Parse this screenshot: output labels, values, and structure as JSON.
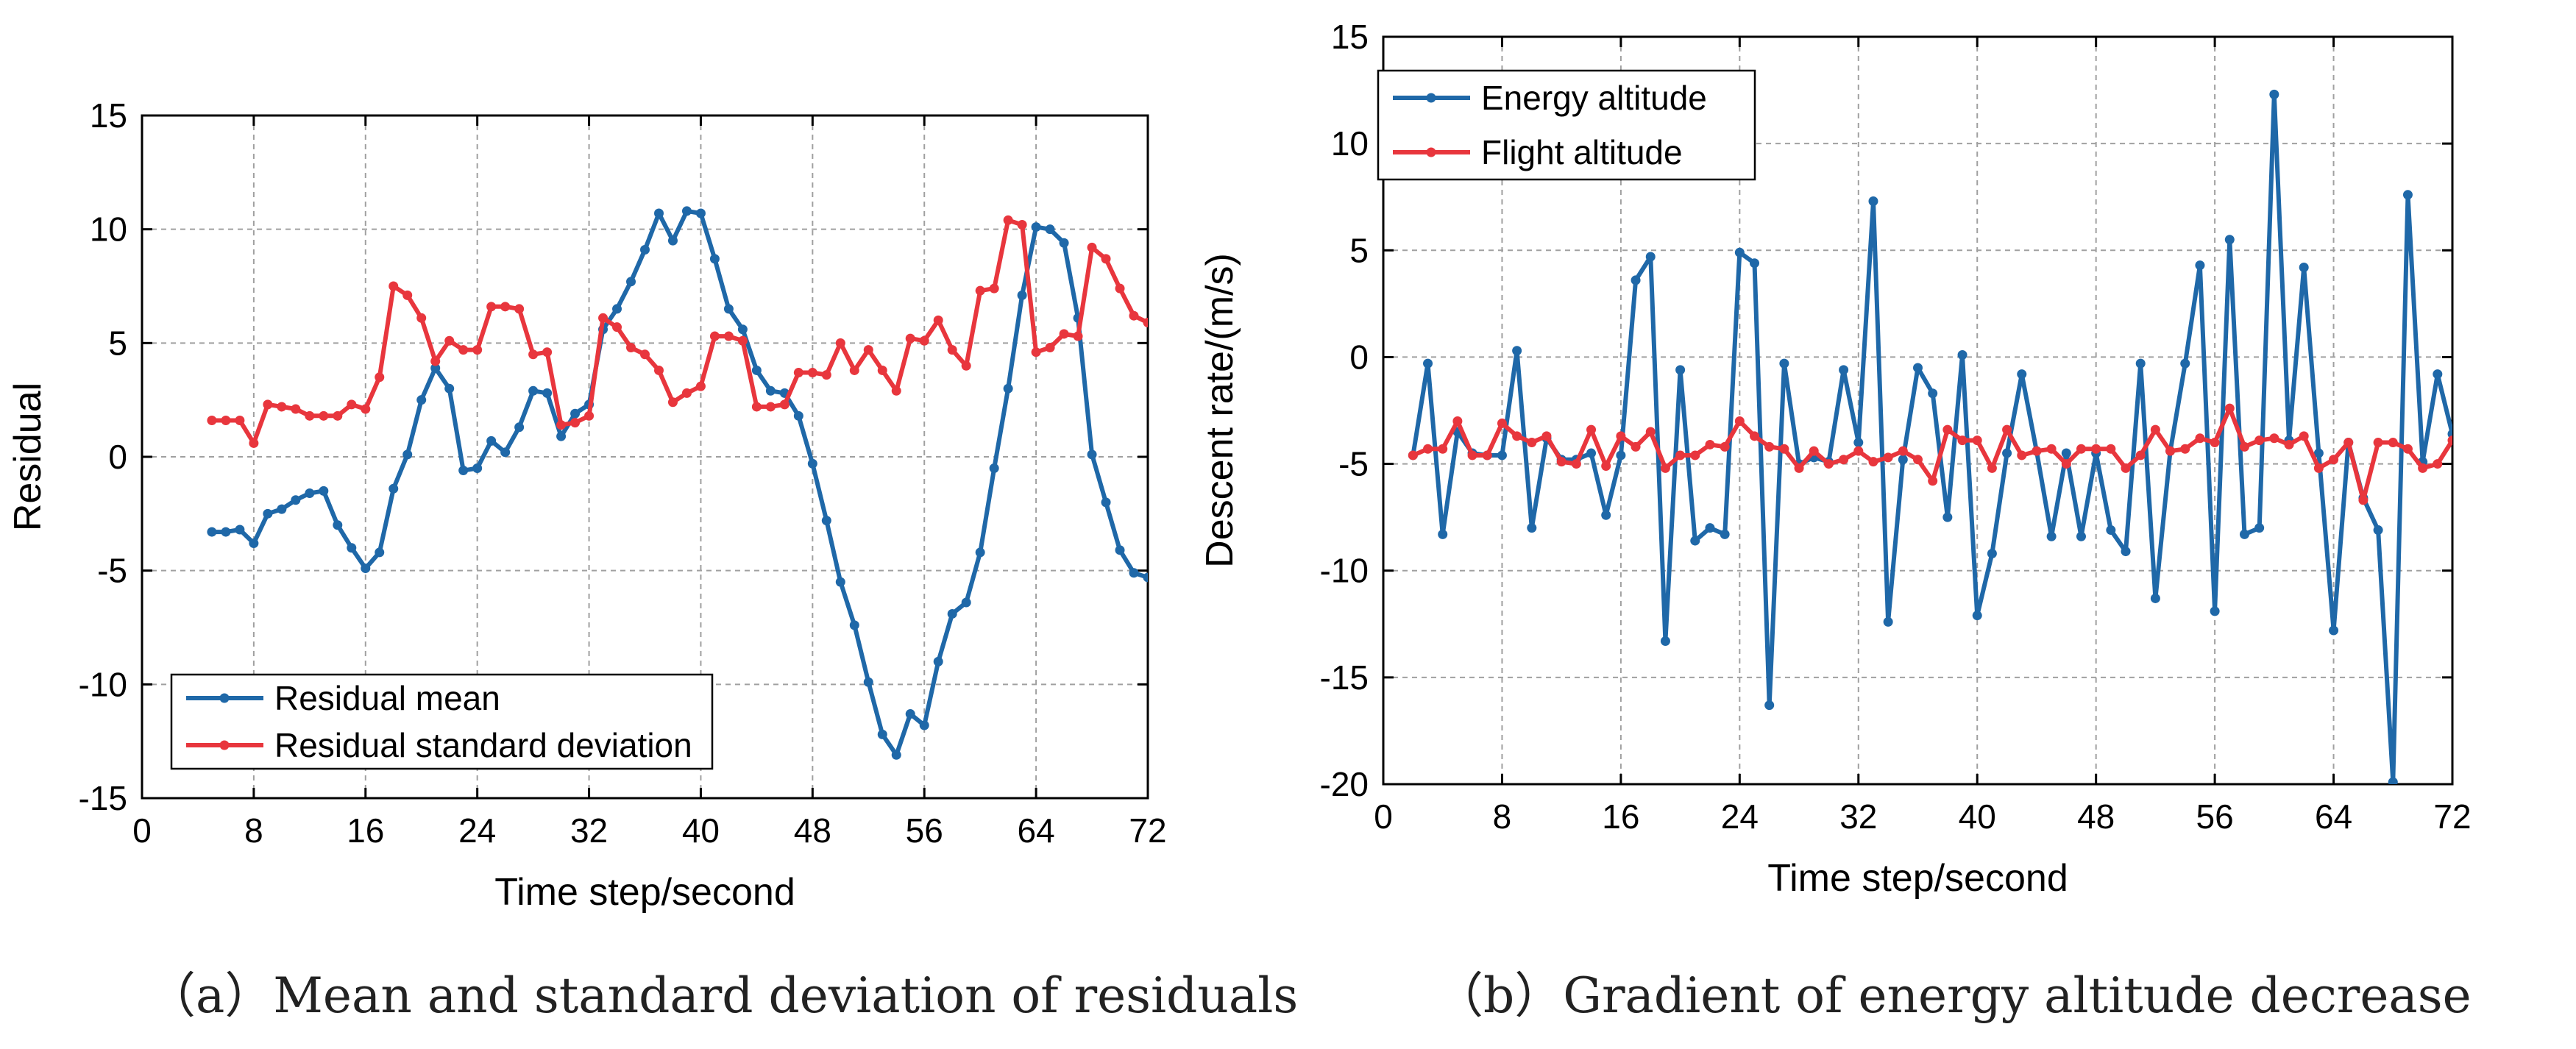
{
  "captions": {
    "a": "（a）Mean and standard deviation of residuals",
    "b": "（b）Gradient of energy altitude decrease"
  },
  "colors": {
    "blue": "#1f68a8",
    "red": "#e8363d",
    "grid": "#a0a0a0"
  },
  "chart_data": [
    {
      "type": "line",
      "xlabel": "Time step/second",
      "ylabel": "Residual",
      "xlim": [
        0,
        72
      ],
      "ylim": [
        -15,
        15
      ],
      "xticks": [
        0,
        8,
        16,
        24,
        32,
        40,
        48,
        56,
        64,
        72
      ],
      "yticks": [
        -15,
        -10,
        -5,
        0,
        5,
        10,
        15
      ],
      "grid": true,
      "legend_position": "bottom-left",
      "series": [
        {
          "name": "Residual mean",
          "color": "#1f68a8",
          "x": [
            5,
            6,
            7,
            8,
            9,
            10,
            11,
            12,
            13,
            14,
            15,
            16,
            17,
            18,
            19,
            20,
            21,
            22,
            23,
            24,
            25,
            26,
            27,
            28,
            29,
            30,
            31,
            32,
            33,
            34,
            35,
            36,
            37,
            38,
            39,
            40,
            41,
            42,
            43,
            44,
            45,
            46,
            47,
            48,
            49,
            50,
            51,
            52,
            53,
            54,
            55,
            56,
            57,
            58,
            59,
            60,
            61,
            62,
            63,
            64,
            65,
            66,
            67,
            68,
            69,
            70,
            71,
            72
          ],
          "y": [
            -3.3,
            -3.3,
            -3.2,
            -3.8,
            -2.5,
            -2.3,
            -1.9,
            -1.6,
            -1.5,
            -3.0,
            -4.0,
            -4.9,
            -4.2,
            -1.4,
            0.1,
            2.5,
            3.9,
            3.0,
            -0.6,
            -0.5,
            0.7,
            0.2,
            1.3,
            2.9,
            2.8,
            0.9,
            1.9,
            2.3,
            5.6,
            6.5,
            7.7,
            9.1,
            10.7,
            9.5,
            10.8,
            10.7,
            8.7,
            6.5,
            5.6,
            3.8,
            2.9,
            2.8,
            1.8,
            -0.3,
            -2.8,
            -5.5,
            -7.4,
            -9.9,
            -12.2,
            -13.1,
            -11.3,
            -11.8,
            -9.0,
            -6.9,
            -6.4,
            -4.2,
            -0.5,
            3.0,
            7.1,
            10.1,
            10.0,
            9.4,
            6.1,
            0.1,
            -2.0,
            -4.1,
            -5.1,
            -5.3
          ]
        },
        {
          "name": "Residual standard deviation",
          "color": "#e8363d",
          "x": [
            5,
            6,
            7,
            8,
            9,
            10,
            11,
            12,
            13,
            14,
            15,
            16,
            17,
            18,
            19,
            20,
            21,
            22,
            23,
            24,
            25,
            26,
            27,
            28,
            29,
            30,
            31,
            32,
            33,
            34,
            35,
            36,
            37,
            38,
            39,
            40,
            41,
            42,
            43,
            44,
            45,
            46,
            47,
            48,
            49,
            50,
            51,
            52,
            53,
            54,
            55,
            56,
            57,
            58,
            59,
            60,
            61,
            62,
            63,
            64,
            65,
            66,
            67,
            68,
            69,
            70,
            71,
            72
          ],
          "y": [
            1.6,
            1.6,
            1.6,
            0.6,
            2.3,
            2.2,
            2.1,
            1.8,
            1.8,
            1.8,
            2.3,
            2.1,
            3.5,
            7.5,
            7.1,
            6.1,
            4.2,
            5.1,
            4.7,
            4.7,
            6.6,
            6.6,
            6.5,
            4.5,
            4.6,
            1.4,
            1.5,
            1.8,
            6.1,
            5.7,
            4.8,
            4.5,
            3.8,
            2.4,
            2.8,
            3.1,
            5.3,
            5.3,
            5.1,
            2.2,
            2.2,
            2.3,
            3.7,
            3.7,
            3.6,
            5.0,
            3.8,
            4.7,
            3.8,
            2.9,
            5.2,
            5.1,
            6.0,
            4.7,
            4.0,
            7.3,
            7.4,
            10.4,
            10.2,
            4.6,
            4.8,
            5.4,
            5.3,
            9.2,
            8.7,
            7.4,
            6.2,
            5.9
          ]
        }
      ]
    },
    {
      "type": "line",
      "xlabel": "Time step/second",
      "ylabel": "Descent rate/(m/s)",
      "xlim": [
        0,
        72
      ],
      "ylim": [
        -20,
        15
      ],
      "xticks": [
        0,
        8,
        16,
        24,
        32,
        40,
        48,
        56,
        64,
        72
      ],
      "yticks": [
        -20,
        -15,
        -10,
        -5,
        0,
        5,
        10,
        15
      ],
      "grid": true,
      "legend_position": "top-left",
      "series": [
        {
          "name": "Energy altitude",
          "color": "#1f68a8",
          "x": [
            2,
            3,
            4,
            5,
            6,
            7,
            8,
            9,
            10,
            11,
            12,
            13,
            14,
            15,
            16,
            17,
            18,
            19,
            20,
            21,
            22,
            23,
            24,
            25,
            26,
            27,
            28,
            29,
            30,
            31,
            32,
            33,
            34,
            35,
            36,
            37,
            38,
            39,
            40,
            41,
            42,
            43,
            44,
            45,
            46,
            47,
            48,
            49,
            50,
            51,
            52,
            53,
            54,
            55,
            56,
            57,
            58,
            59,
            60,
            61,
            62,
            63,
            64,
            65,
            66,
            67,
            68,
            69,
            70,
            71,
            72
          ],
          "y": [
            -4.6,
            -0.3,
            -8.3,
            -3.5,
            -4.5,
            -4.6,
            -4.6,
            0.3,
            -8.0,
            -3.8,
            -4.8,
            -4.8,
            -4.5,
            -7.4,
            -4.6,
            3.6,
            4.7,
            -13.3,
            -0.6,
            -8.6,
            -8.0,
            -8.3,
            4.9,
            4.4,
            -16.3,
            -0.3,
            -5.0,
            -4.7,
            -4.9,
            -0.6,
            -4.0,
            7.3,
            -12.4,
            -4.8,
            -0.5,
            -1.7,
            -7.5,
            0.1,
            -12.1,
            -9.2,
            -4.5,
            -0.8,
            -4.4,
            -8.4,
            -4.5,
            -8.4,
            -4.5,
            -8.1,
            -9.1,
            -0.3,
            -11.3,
            -4.4,
            -0.3,
            4.3,
            -11.9,
            5.5,
            -8.3,
            -8.0,
            12.3,
            -3.9,
            4.2,
            -4.5,
            -12.8,
            -4.0,
            -6.6,
            -8.1,
            -19.9,
            7.6,
            -4.9,
            -0.8,
            -3.6
          ]
        },
        {
          "name": "Flight altitude",
          "color": "#e8363d",
          "x": [
            2,
            3,
            4,
            5,
            6,
            7,
            8,
            9,
            10,
            11,
            12,
            13,
            14,
            15,
            16,
            17,
            18,
            19,
            20,
            21,
            22,
            23,
            24,
            25,
            26,
            27,
            28,
            29,
            30,
            31,
            32,
            33,
            34,
            35,
            36,
            37,
            38,
            39,
            40,
            41,
            42,
            43,
            44,
            45,
            46,
            47,
            48,
            49,
            50,
            51,
            52,
            53,
            54,
            55,
            56,
            57,
            58,
            59,
            60,
            61,
            62,
            63,
            64,
            65,
            66,
            67,
            68,
            69,
            70,
            71,
            72
          ],
          "y": [
            -4.6,
            -4.3,
            -4.3,
            -3.0,
            -4.6,
            -4.6,
            -3.1,
            -3.7,
            -4.0,
            -3.7,
            -4.9,
            -5.0,
            -3.4,
            -5.1,
            -3.7,
            -4.2,
            -3.5,
            -5.2,
            -4.6,
            -4.6,
            -4.1,
            -4.2,
            -3.0,
            -3.7,
            -4.2,
            -4.3,
            -5.2,
            -4.4,
            -5.0,
            -4.8,
            -4.4,
            -4.9,
            -4.7,
            -4.4,
            -4.8,
            -5.8,
            -3.4,
            -3.9,
            -3.9,
            -5.2,
            -3.4,
            -4.6,
            -4.4,
            -4.3,
            -5.0,
            -4.3,
            -4.3,
            -4.3,
            -5.2,
            -4.6,
            -3.4,
            -4.4,
            -4.3,
            -3.8,
            -4.0,
            -2.4,
            -4.2,
            -3.9,
            -3.8,
            -4.1,
            -3.7,
            -5.2,
            -4.8,
            -4.0,
            -6.7,
            -4.0,
            -4.0,
            -4.3,
            -5.2,
            -5.0,
            -3.9
          ]
        }
      ]
    }
  ]
}
